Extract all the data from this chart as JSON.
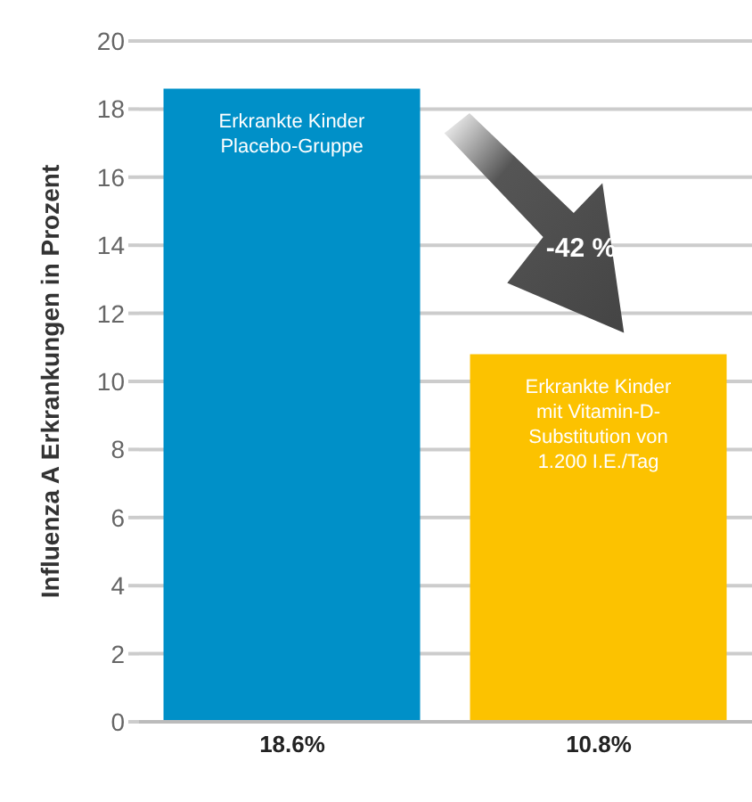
{
  "chart_data": {
    "type": "bar",
    "categories": [
      "Erkrankte Kinder Placebo-Gruppe",
      "Erkrankte Kinder mit Vitamin-D-Substitution von 1.200 I.E./Tag"
    ],
    "values": [
      18.6,
      10.8
    ],
    "colors": [
      "#0090c8",
      "#fcc200"
    ],
    "value_labels": [
      "18.6%",
      "10.8%"
    ],
    "ylabel": "Influenza A Erkrankungen in Prozent",
    "ylim": [
      0,
      20
    ],
    "yticks": [
      0,
      2,
      4,
      6,
      8,
      10,
      12,
      14,
      16,
      18,
      20
    ],
    "grid": "y",
    "annotations": [
      "-42 %"
    ]
  }
}
